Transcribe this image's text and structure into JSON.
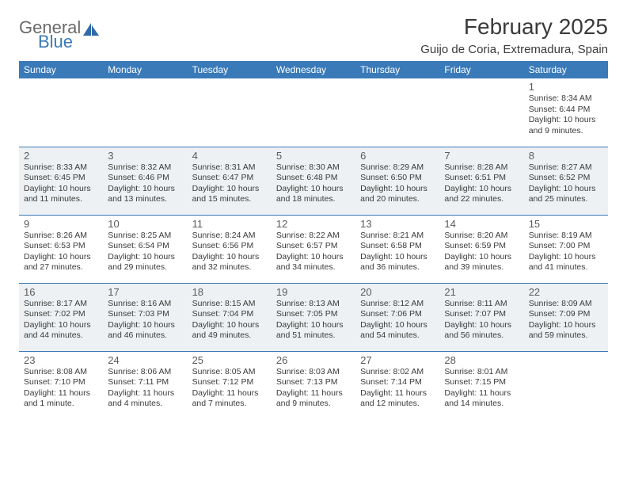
{
  "brand": {
    "text1": "General",
    "text2": "Blue"
  },
  "title": "February 2025",
  "location": "Guijo de Coria, Extremadura, Spain",
  "colors": {
    "header_bg": "#3a7ab8",
    "header_text": "#ffffff",
    "alt_row_bg": "#eef1f3",
    "border": "#3a7ab8",
    "body_text": "#3a3a3a",
    "logo_gray": "#6a6a6a",
    "logo_blue": "#3a7ab8"
  },
  "day_headers": [
    "Sunday",
    "Monday",
    "Tuesday",
    "Wednesday",
    "Thursday",
    "Friday",
    "Saturday"
  ],
  "weeks": [
    {
      "alt": false,
      "cells": [
        {
          "empty": true
        },
        {
          "empty": true
        },
        {
          "empty": true
        },
        {
          "empty": true
        },
        {
          "empty": true
        },
        {
          "empty": true
        },
        {
          "day": "1",
          "sunrise": "Sunrise: 8:34 AM",
          "sunset": "Sunset: 6:44 PM",
          "daylight": "Daylight: 10 hours and 9 minutes."
        }
      ]
    },
    {
      "alt": true,
      "cells": [
        {
          "day": "2",
          "sunrise": "Sunrise: 8:33 AM",
          "sunset": "Sunset: 6:45 PM",
          "daylight": "Daylight: 10 hours and 11 minutes."
        },
        {
          "day": "3",
          "sunrise": "Sunrise: 8:32 AM",
          "sunset": "Sunset: 6:46 PM",
          "daylight": "Daylight: 10 hours and 13 minutes."
        },
        {
          "day": "4",
          "sunrise": "Sunrise: 8:31 AM",
          "sunset": "Sunset: 6:47 PM",
          "daylight": "Daylight: 10 hours and 15 minutes."
        },
        {
          "day": "5",
          "sunrise": "Sunrise: 8:30 AM",
          "sunset": "Sunset: 6:48 PM",
          "daylight": "Daylight: 10 hours and 18 minutes."
        },
        {
          "day": "6",
          "sunrise": "Sunrise: 8:29 AM",
          "sunset": "Sunset: 6:50 PM",
          "daylight": "Daylight: 10 hours and 20 minutes."
        },
        {
          "day": "7",
          "sunrise": "Sunrise: 8:28 AM",
          "sunset": "Sunset: 6:51 PM",
          "daylight": "Daylight: 10 hours and 22 minutes."
        },
        {
          "day": "8",
          "sunrise": "Sunrise: 8:27 AM",
          "sunset": "Sunset: 6:52 PM",
          "daylight": "Daylight: 10 hours and 25 minutes."
        }
      ]
    },
    {
      "alt": false,
      "cells": [
        {
          "day": "9",
          "sunrise": "Sunrise: 8:26 AM",
          "sunset": "Sunset: 6:53 PM",
          "daylight": "Daylight: 10 hours and 27 minutes."
        },
        {
          "day": "10",
          "sunrise": "Sunrise: 8:25 AM",
          "sunset": "Sunset: 6:54 PM",
          "daylight": "Daylight: 10 hours and 29 minutes."
        },
        {
          "day": "11",
          "sunrise": "Sunrise: 8:24 AM",
          "sunset": "Sunset: 6:56 PM",
          "daylight": "Daylight: 10 hours and 32 minutes."
        },
        {
          "day": "12",
          "sunrise": "Sunrise: 8:22 AM",
          "sunset": "Sunset: 6:57 PM",
          "daylight": "Daylight: 10 hours and 34 minutes."
        },
        {
          "day": "13",
          "sunrise": "Sunrise: 8:21 AM",
          "sunset": "Sunset: 6:58 PM",
          "daylight": "Daylight: 10 hours and 36 minutes."
        },
        {
          "day": "14",
          "sunrise": "Sunrise: 8:20 AM",
          "sunset": "Sunset: 6:59 PM",
          "daylight": "Daylight: 10 hours and 39 minutes."
        },
        {
          "day": "15",
          "sunrise": "Sunrise: 8:19 AM",
          "sunset": "Sunset: 7:00 PM",
          "daylight": "Daylight: 10 hours and 41 minutes."
        }
      ]
    },
    {
      "alt": true,
      "cells": [
        {
          "day": "16",
          "sunrise": "Sunrise: 8:17 AM",
          "sunset": "Sunset: 7:02 PM",
          "daylight": "Daylight: 10 hours and 44 minutes."
        },
        {
          "day": "17",
          "sunrise": "Sunrise: 8:16 AM",
          "sunset": "Sunset: 7:03 PM",
          "daylight": "Daylight: 10 hours and 46 minutes."
        },
        {
          "day": "18",
          "sunrise": "Sunrise: 8:15 AM",
          "sunset": "Sunset: 7:04 PM",
          "daylight": "Daylight: 10 hours and 49 minutes."
        },
        {
          "day": "19",
          "sunrise": "Sunrise: 8:13 AM",
          "sunset": "Sunset: 7:05 PM",
          "daylight": "Daylight: 10 hours and 51 minutes."
        },
        {
          "day": "20",
          "sunrise": "Sunrise: 8:12 AM",
          "sunset": "Sunset: 7:06 PM",
          "daylight": "Daylight: 10 hours and 54 minutes."
        },
        {
          "day": "21",
          "sunrise": "Sunrise: 8:11 AM",
          "sunset": "Sunset: 7:07 PM",
          "daylight": "Daylight: 10 hours and 56 minutes."
        },
        {
          "day": "22",
          "sunrise": "Sunrise: 8:09 AM",
          "sunset": "Sunset: 7:09 PM",
          "daylight": "Daylight: 10 hours and 59 minutes."
        }
      ]
    },
    {
      "alt": false,
      "cells": [
        {
          "day": "23",
          "sunrise": "Sunrise: 8:08 AM",
          "sunset": "Sunset: 7:10 PM",
          "daylight": "Daylight: 11 hours and 1 minute."
        },
        {
          "day": "24",
          "sunrise": "Sunrise: 8:06 AM",
          "sunset": "Sunset: 7:11 PM",
          "daylight": "Daylight: 11 hours and 4 minutes."
        },
        {
          "day": "25",
          "sunrise": "Sunrise: 8:05 AM",
          "sunset": "Sunset: 7:12 PM",
          "daylight": "Daylight: 11 hours and 7 minutes."
        },
        {
          "day": "26",
          "sunrise": "Sunrise: 8:03 AM",
          "sunset": "Sunset: 7:13 PM",
          "daylight": "Daylight: 11 hours and 9 minutes."
        },
        {
          "day": "27",
          "sunrise": "Sunrise: 8:02 AM",
          "sunset": "Sunset: 7:14 PM",
          "daylight": "Daylight: 11 hours and 12 minutes."
        },
        {
          "day": "28",
          "sunrise": "Sunrise: 8:01 AM",
          "sunset": "Sunset: 7:15 PM",
          "daylight": "Daylight: 11 hours and 14 minutes."
        },
        {
          "empty": true
        }
      ]
    }
  ]
}
